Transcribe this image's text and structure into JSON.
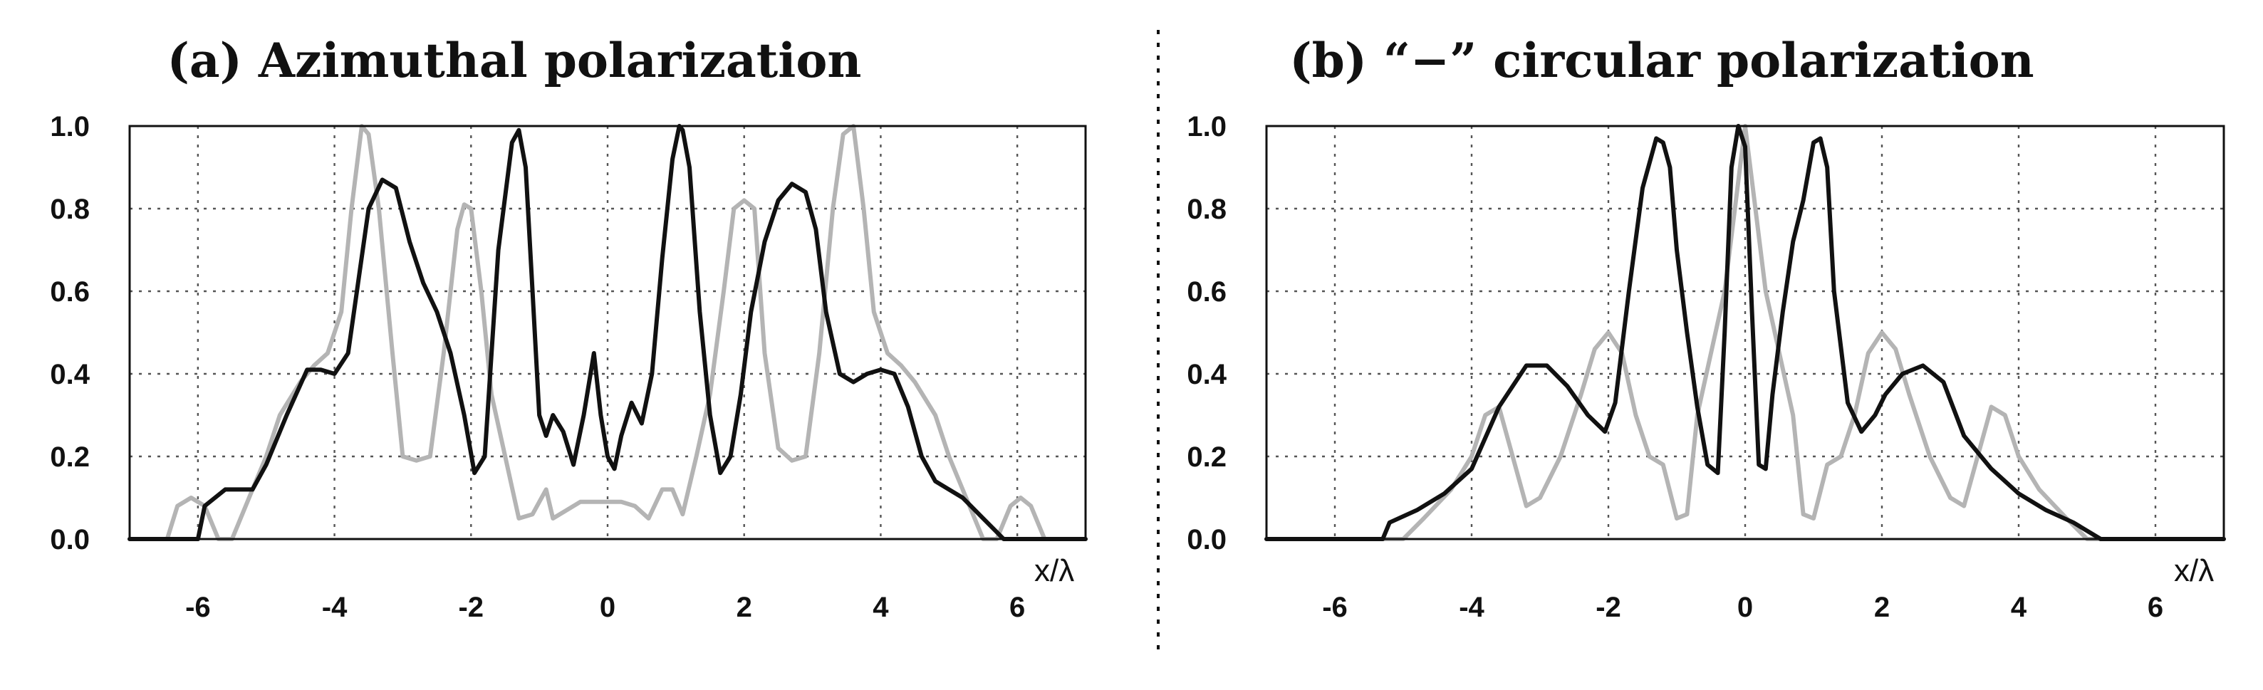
{
  "chart_data": [
    {
      "type": "line",
      "title": "(a) Azimuthal polarization",
      "xlabel": "x/λ",
      "ylabel": "",
      "xlim": [
        -7,
        7
      ],
      "ylim": [
        0,
        1
      ],
      "xticks": [
        -6,
        -4,
        -2,
        0,
        2,
        4,
        6
      ],
      "yticks": [
        0.0,
        0.2,
        0.4,
        0.6,
        0.8,
        1.0
      ],
      "ytick_labels": [
        "0.0",
        "0.2",
        "0.4",
        "0.6",
        "0.8",
        "1.0"
      ],
      "grid": true,
      "series": [
        {
          "color": "#111111",
          "x": [
            -7,
            -6.3,
            -6.0,
            -5.9,
            -5.6,
            -5.2,
            -5.0,
            -4.7,
            -4.4,
            -4.2,
            -4.0,
            -3.8,
            -3.5,
            -3.3,
            -3.1,
            -2.9,
            -2.7,
            -2.5,
            -2.3,
            -2.1,
            -1.95,
            -1.8,
            -1.6,
            -1.4,
            -1.3,
            -1.2,
            -1.1,
            -1.0,
            -0.9,
            -0.8,
            -0.65,
            -0.5,
            -0.35,
            -0.2,
            -0.1,
            0.0,
            0.1,
            0.2,
            0.35,
            0.5,
            0.65,
            0.8,
            0.95,
            1.05,
            1.1,
            1.2,
            1.35,
            1.5,
            1.65,
            1.8,
            1.95,
            2.1,
            2.3,
            2.5,
            2.7,
            2.9,
            3.05,
            3.2,
            3.4,
            3.6,
            3.8,
            4.0,
            4.2,
            4.4,
            4.6,
            4.8,
            5.0,
            5.2,
            5.5,
            5.8,
            5.95,
            6.3,
            7
          ],
          "y": [
            0.0,
            0.0,
            0.0,
            0.08,
            0.12,
            0.12,
            0.18,
            0.3,
            0.41,
            0.41,
            0.4,
            0.45,
            0.8,
            0.87,
            0.85,
            0.72,
            0.62,
            0.55,
            0.45,
            0.3,
            0.16,
            0.2,
            0.7,
            0.96,
            0.99,
            0.9,
            0.6,
            0.3,
            0.25,
            0.3,
            0.26,
            0.18,
            0.3,
            0.45,
            0.3,
            0.2,
            0.17,
            0.25,
            0.33,
            0.28,
            0.4,
            0.68,
            0.92,
            1.0,
            0.99,
            0.9,
            0.55,
            0.3,
            0.16,
            0.2,
            0.35,
            0.55,
            0.72,
            0.82,
            0.86,
            0.84,
            0.75,
            0.55,
            0.4,
            0.38,
            0.4,
            0.41,
            0.4,
            0.32,
            0.2,
            0.14,
            0.12,
            0.1,
            0.05,
            0.0,
            0.0,
            0.0,
            0.0
          ]
        },
        {
          "color": "#b4b4b4",
          "x": [
            -7,
            -6.45,
            -6.3,
            -6.1,
            -5.9,
            -5.7,
            -5.5,
            -5.2,
            -5.0,
            -4.8,
            -4.5,
            -4.3,
            -4.1,
            -3.9,
            -3.75,
            -3.6,
            -3.5,
            -3.35,
            -3.15,
            -3.0,
            -2.8,
            -2.6,
            -2.4,
            -2.2,
            -2.1,
            -2.0,
            -1.85,
            -1.7,
            -1.5,
            -1.3,
            -1.1,
            -0.9,
            -0.8,
            -0.6,
            -0.4,
            -0.2,
            0.0,
            0.2,
            0.4,
            0.6,
            0.8,
            0.95,
            1.1,
            1.3,
            1.5,
            1.7,
            1.85,
            2.0,
            2.15,
            2.3,
            2.5,
            2.7,
            2.9,
            3.1,
            3.3,
            3.45,
            3.6,
            3.75,
            3.9,
            4.1,
            4.3,
            4.5,
            4.8,
            5.0,
            5.2,
            5.5,
            5.7,
            5.9,
            6.05,
            6.2,
            6.4,
            7
          ],
          "y": [
            0.0,
            0.0,
            0.08,
            0.1,
            0.08,
            0.0,
            0.0,
            0.12,
            0.2,
            0.3,
            0.38,
            0.42,
            0.45,
            0.55,
            0.8,
            1.0,
            0.98,
            0.8,
            0.45,
            0.2,
            0.19,
            0.2,
            0.45,
            0.75,
            0.81,
            0.8,
            0.6,
            0.35,
            0.2,
            0.05,
            0.06,
            0.12,
            0.05,
            0.07,
            0.09,
            0.09,
            0.09,
            0.09,
            0.08,
            0.05,
            0.12,
            0.12,
            0.06,
            0.2,
            0.35,
            0.6,
            0.8,
            0.82,
            0.8,
            0.45,
            0.22,
            0.19,
            0.2,
            0.45,
            0.8,
            0.98,
            1.0,
            0.8,
            0.55,
            0.45,
            0.42,
            0.38,
            0.3,
            0.2,
            0.12,
            0.0,
            0.0,
            0.08,
            0.1,
            0.08,
            0.0,
            0.0
          ]
        }
      ]
    },
    {
      "type": "line",
      "title": "(b) “−” circular polarization",
      "xlabel": "x/λ",
      "ylabel": "",
      "xlim": [
        -7,
        7
      ],
      "ylim": [
        0,
        1
      ],
      "xticks": [
        -6,
        -4,
        -2,
        0,
        2,
        4,
        6
      ],
      "yticks": [
        0.0,
        0.2,
        0.4,
        0.6,
        0.8,
        1.0
      ],
      "ytick_labels": [
        "0.0",
        "0.2",
        "0.4",
        "0.6",
        "0.8",
        "1.0"
      ],
      "grid": true,
      "series": [
        {
          "color": "#111111",
          "x": [
            -7,
            -5.3,
            -5.2,
            -4.8,
            -4.4,
            -4.0,
            -3.6,
            -3.2,
            -2.9,
            -2.6,
            -2.3,
            -2.05,
            -1.9,
            -1.7,
            -1.5,
            -1.3,
            -1.2,
            -1.1,
            -1.0,
            -0.85,
            -0.7,
            -0.55,
            -0.4,
            -0.3,
            -0.2,
            -0.1,
            0.0,
            0.1,
            0.2,
            0.3,
            0.4,
            0.55,
            0.7,
            0.85,
            1.0,
            1.1,
            1.2,
            1.3,
            1.5,
            1.7,
            1.9,
            2.05,
            2.3,
            2.6,
            2.9,
            3.2,
            3.6,
            4.0,
            4.4,
            4.8,
            5.2,
            5.3,
            7
          ],
          "y": [
            0.0,
            0.0,
            0.04,
            0.07,
            0.11,
            0.17,
            0.32,
            0.42,
            0.42,
            0.37,
            0.3,
            0.26,
            0.33,
            0.6,
            0.85,
            0.97,
            0.96,
            0.9,
            0.7,
            0.5,
            0.32,
            0.18,
            0.16,
            0.5,
            0.9,
            1.0,
            0.95,
            0.55,
            0.18,
            0.17,
            0.35,
            0.55,
            0.72,
            0.82,
            0.96,
            0.97,
            0.9,
            0.6,
            0.33,
            0.26,
            0.3,
            0.35,
            0.4,
            0.42,
            0.38,
            0.25,
            0.17,
            0.11,
            0.07,
            0.04,
            0.0,
            0.0,
            0.0
          ]
        },
        {
          "color": "#b4b4b4",
          "x": [
            -7,
            -5.0,
            -4.7,
            -4.3,
            -4.0,
            -3.8,
            -3.6,
            -3.4,
            -3.2,
            -3.0,
            -2.7,
            -2.4,
            -2.2,
            -2.0,
            -1.8,
            -1.6,
            -1.4,
            -1.2,
            -1.0,
            -0.85,
            -0.7,
            -0.5,
            -0.3,
            -0.15,
            0.0,
            0.15,
            0.3,
            0.5,
            0.7,
            0.85,
            1.0,
            1.2,
            1.4,
            1.6,
            1.8,
            2.0,
            2.2,
            2.4,
            2.7,
            3.0,
            3.2,
            3.4,
            3.6,
            3.8,
            4.0,
            4.3,
            4.7,
            5.0,
            7
          ],
          "y": [
            0.0,
            0.0,
            0.05,
            0.12,
            0.2,
            0.3,
            0.32,
            0.2,
            0.08,
            0.1,
            0.2,
            0.35,
            0.46,
            0.5,
            0.45,
            0.3,
            0.2,
            0.18,
            0.05,
            0.06,
            0.3,
            0.45,
            0.6,
            0.8,
            1.0,
            0.8,
            0.6,
            0.45,
            0.3,
            0.06,
            0.05,
            0.18,
            0.2,
            0.3,
            0.45,
            0.5,
            0.46,
            0.35,
            0.2,
            0.1,
            0.08,
            0.2,
            0.32,
            0.3,
            0.2,
            0.12,
            0.05,
            0.0,
            0.0
          ]
        }
      ]
    }
  ]
}
